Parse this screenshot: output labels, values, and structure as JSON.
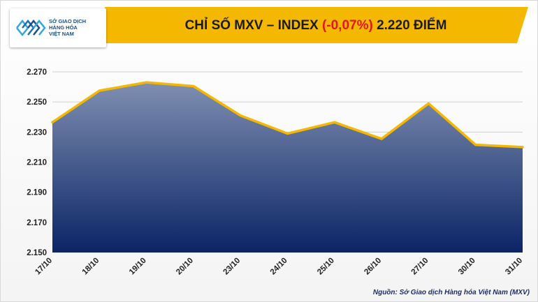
{
  "header": {
    "title_prefix": "CHỈ SỐ MXV – INDEX ",
    "title_change": "(-0,07%)",
    "title_suffix": " 2.220 ĐIỂM",
    "accent_color": "#f5b800",
    "change_color": "#e4161d"
  },
  "logo": {
    "line1": "SỞ GIAO DỊCH",
    "line2": "HÀNG HÓA",
    "line3": "VIỆT NAM",
    "color": "#1d4e89"
  },
  "source": "Nguồn: Sở Giao dịch Hàng hóa Việt Nam (MXV)",
  "chart_data": {
    "type": "area",
    "x": [
      "17/10",
      "18/10",
      "19/10",
      "20/10",
      "23/10",
      "24/10",
      "25/10",
      "26/10",
      "27/10",
      "30/10",
      "31/10"
    ],
    "series": [
      {
        "values": [
          2236.5,
          2257.5,
          2263,
          2260.5,
          2241,
          2229,
          2236.5,
          2225.5,
          2249,
          2221.5,
          2220
        ]
      }
    ],
    "yticks": [
      "2.150",
      "2.170",
      "2.190",
      "2.210",
      "2.230",
      "2.250",
      "2.270"
    ],
    "ytick_values": [
      2150,
      2170,
      2190,
      2210,
      2230,
      2250,
      2270
    ],
    "ylim": [
      2150,
      2270
    ],
    "grid": true,
    "line_color": "#f5b800",
    "fill_top_color": "#7f8fb1",
    "fill_bottom_color": "#0b2466"
  }
}
